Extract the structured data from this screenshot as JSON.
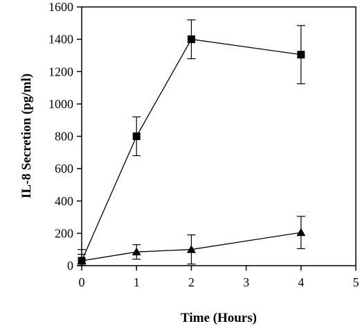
{
  "chart_data": {
    "type": "line",
    "title": "",
    "xlabel": "Time (Hours)",
    "ylabel": "IL-8 Secretion (pg/ml)",
    "xlim": [
      0,
      5
    ],
    "ylim": [
      0,
      1600
    ],
    "x_ticks": [
      "0",
      "1",
      "2",
      "3",
      "4",
      "5"
    ],
    "y_ticks": [
      "0",
      "200",
      "400",
      "600",
      "800",
      "1000",
      "1200",
      "1400",
      "1600"
    ],
    "grid": false,
    "legend": "none",
    "series": [
      {
        "marker": "square",
        "x": [
          0,
          1,
          2,
          4
        ],
        "y": [
          30,
          800,
          1400,
          1305
        ],
        "error": [
          40,
          120,
          120,
          180
        ]
      },
      {
        "marker": "triangle",
        "x": [
          0,
          1,
          2,
          4
        ],
        "y": [
          30,
          85,
          100,
          205
        ],
        "error": [
          70,
          45,
          90,
          100
        ]
      }
    ]
  }
}
